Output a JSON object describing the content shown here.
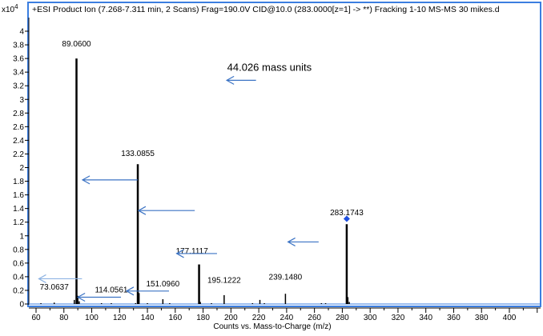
{
  "chart_data": {
    "type": "bar",
    "title": "+ESI Product Ion (7.268-7.311 min, 2 Scans) Frag=190.0V CID@10.0 (283.0000[z=1] -> **) Fracking   1-10 MS-MS 30 mikes.d",
    "xlabel": "Counts vs. Mass-to-Charge (m/z)",
    "y_multiplier": "x10",
    "y_multiplier_exp": "4",
    "xlim": [
      55,
      422
    ],
    "ylim": [
      0,
      4.4
    ],
    "xticks": [
      60,
      80,
      100,
      120,
      140,
      160,
      180,
      200,
      220,
      240,
      260,
      280,
      300,
      320,
      340,
      360,
      380,
      400
    ],
    "yticks": [
      0,
      0.2,
      0.4,
      0.6,
      0.8,
      1,
      1.2,
      1.4,
      1.6,
      1.8,
      2,
      2.2,
      2.4,
      2.6,
      2.8,
      3,
      3.2,
      3.4,
      3.6,
      3.8,
      4
    ],
    "grid": false,
    "peaks": [
      {
        "mz": 63.5,
        "y": 0.01
      },
      {
        "mz": 73.06,
        "y": 0.02
      },
      {
        "mz": 87.5,
        "y": 0.06
      },
      {
        "mz": 89.06,
        "y": 3.6
      },
      {
        "mz": 90.0,
        "y": 0.12
      },
      {
        "mz": 91.0,
        "y": 0.04
      },
      {
        "mz": 107,
        "y": 0.01
      },
      {
        "mz": 114.06,
        "y": 0.01
      },
      {
        "mz": 131.5,
        "y": 0.01
      },
      {
        "mz": 133.09,
        "y": 2.05
      },
      {
        "mz": 134.0,
        "y": 0.16
      },
      {
        "mz": 140,
        "y": 0.01
      },
      {
        "mz": 151.1,
        "y": 0.07
      },
      {
        "mz": 156,
        "y": 0.01
      },
      {
        "mz": 177.11,
        "y": 0.58
      },
      {
        "mz": 178.0,
        "y": 0.03
      },
      {
        "mz": 186,
        "y": 0.01
      },
      {
        "mz": 195.12,
        "y": 0.13
      },
      {
        "mz": 215.5,
        "y": 0.01
      },
      {
        "mz": 220.8,
        "y": 0.06
      },
      {
        "mz": 224,
        "y": 0.01
      },
      {
        "mz": 239.15,
        "y": 0.15
      },
      {
        "mz": 265,
        "y": 0.01
      },
      {
        "mz": 268,
        "y": 0.01
      },
      {
        "mz": 283.17,
        "y": 1.17
      },
      {
        "mz": 284.0,
        "y": 0.1
      },
      {
        "mz": 285,
        "y": 0.03
      }
    ],
    "peak_labels": [
      {
        "text": "89.0600",
        "mz": 89.06,
        "y": 3.78
      },
      {
        "text": "133.0855",
        "mz": 133.09,
        "y": 2.17
      },
      {
        "text": "283.1743",
        "mz": 283.17,
        "y": 1.3
      },
      {
        "text": "177.1117",
        "mz": 172,
        "y": 0.74
      },
      {
        "text": "73.0637",
        "mz": 73.06,
        "y": 0.21
      },
      {
        "text": "114.0561",
        "mz": 114.06,
        "y": 0.17
      },
      {
        "text": "151.0960",
        "mz": 151.1,
        "y": 0.26
      },
      {
        "text": "195.1222",
        "mz": 195.12,
        "y": 0.31
      },
      {
        "text": "239.1480",
        "mz": 239.15,
        "y": 0.36
      }
    ],
    "precursor_marker": {
      "mz": 283.17,
      "y": 1.25,
      "color": "#1f4fe0"
    },
    "annotation": {
      "text": "44.026 mass units",
      "mz": 218,
      "y": 3.42
    },
    "arrows": [
      {
        "from": [
          218,
          3.28
        ],
        "to": [
          197,
          3.28
        ],
        "color": "#3b73c4"
      },
      {
        "from": [
          133,
          1.82
        ],
        "to": [
          93.4,
          1.82
        ],
        "color": "#3b73c4"
      },
      {
        "from": [
          174,
          1.37
        ],
        "to": [
          133.6,
          1.37
        ],
        "color": "#3b73c4"
      },
      {
        "from": [
          263,
          0.91
        ],
        "to": [
          241,
          0.91
        ],
        "color": "#3b73c4"
      },
      {
        "from": [
          190,
          0.74
        ],
        "to": [
          161,
          0.74
        ],
        "color": "#3b73c4"
      },
      {
        "from": [
          93,
          0.37
        ],
        "to": [
          62,
          0.37
        ],
        "color": "#8fb4e3"
      },
      {
        "from": [
          155.5,
          0.19
        ],
        "to": [
          125,
          0.19
        ],
        "color": "#3b73c4"
      },
      {
        "from": [
          121,
          0.1
        ],
        "to": [
          90,
          0.1
        ],
        "color": "#3b73c4"
      }
    ],
    "frame_color": "#3b7ee0"
  }
}
